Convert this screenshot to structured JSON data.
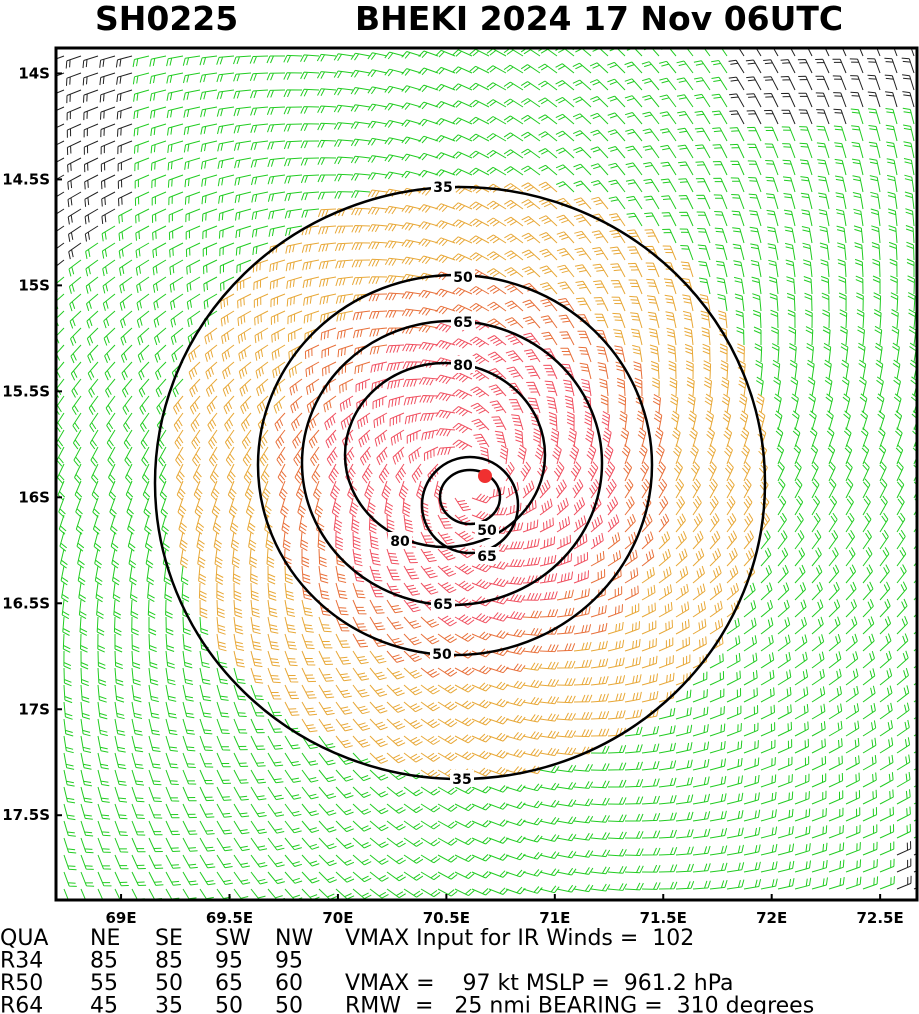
{
  "header": {
    "id": "SH0225",
    "title": "BHEKI 2024 17 Nov 06UTC"
  },
  "map": {
    "xlim": [
      68.7,
      72.67
    ],
    "ylim": [
      13.88,
      17.9
    ],
    "xticks": [
      {
        "value": 69,
        "label": "69E"
      },
      {
        "value": 69.5,
        "label": "69.5E"
      },
      {
        "value": 70,
        "label": "70E"
      },
      {
        "value": 70.5,
        "label": "70.5E"
      },
      {
        "value": 71,
        "label": "71E"
      },
      {
        "value": 71.5,
        "label": "71.5E"
      },
      {
        "value": 72,
        "label": "72E"
      },
      {
        "value": 72.5,
        "label": "72.5E"
      }
    ],
    "yticks": [
      {
        "value": 14,
        "label": "14S"
      },
      {
        "value": 14.5,
        "label": "14.5S"
      },
      {
        "value": 15,
        "label": "15S"
      },
      {
        "value": 15.5,
        "label": "15.5S"
      },
      {
        "value": 16,
        "label": "16S"
      },
      {
        "value": 16.5,
        "label": "16.5S"
      },
      {
        "value": 17,
        "label": "17S"
      },
      {
        "value": 17.5,
        "label": "17.5S"
      }
    ],
    "contours": [
      35,
      50,
      65,
      80,
      50,
      65
    ]
  },
  "table": {
    "rows": [
      [
        "QUA",
        "NE",
        "SE",
        "SW",
        "NW",
        "VMAX Input for IR Winds =  102"
      ],
      [
        "R34",
        "85",
        "85",
        "95",
        "95"
      ],
      [
        "R50",
        "55",
        "50",
        "65",
        "60",
        "VMAX =    97 kt MSLP =  961.2 hPa"
      ],
      [
        "R64",
        "45",
        "35",
        "50",
        "50",
        "RMW  =   25 nmi BEARING =  310 degrees"
      ]
    ]
  }
}
